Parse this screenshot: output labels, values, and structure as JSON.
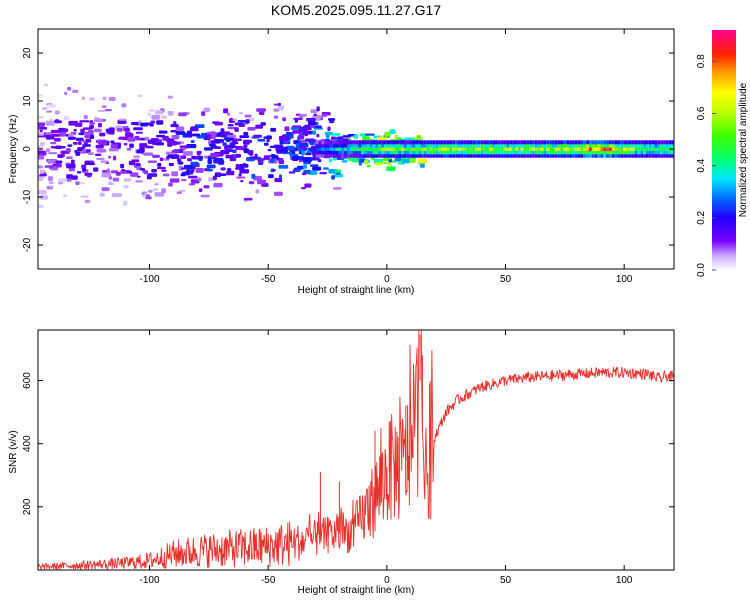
{
  "title": "KOM5.2025.095.11.27.G17",
  "chart_data": [
    {
      "type": "heatmap",
      "xlabel": "Height of straight line (km)",
      "ylabel": "Frequency (Hz)",
      "xlim": [
        -147,
        121
      ],
      "ylim": [
        -25,
        25
      ],
      "x_ticks": [
        -100,
        -50,
        0,
        50,
        100
      ],
      "y_ticks": [
        -20,
        -10,
        0,
        10,
        20
      ],
      "colorbar": {
        "label": "Normalized spectral amplitude",
        "range": [
          0,
          0.92
        ],
        "ticks": [
          0.0,
          0.2,
          0.4,
          0.6,
          0.8
        ]
      },
      "description_points": [
        {
          "x": -140,
          "f": 3,
          "a": 0.12
        },
        {
          "x": -130,
          "f": -2,
          "a": 0.15
        },
        {
          "x": -120,
          "f": 1,
          "a": 0.14
        },
        {
          "x": -110,
          "f": 4,
          "a": 0.13
        },
        {
          "x": -100,
          "f": 0,
          "a": 0.16
        },
        {
          "x": -90,
          "f": -3,
          "a": 0.15
        },
        {
          "x": -80,
          "f": 2,
          "a": 0.2
        },
        {
          "x": -70,
          "f": 0,
          "a": 0.18
        },
        {
          "x": -60,
          "f": -1,
          "a": 0.2
        },
        {
          "x": -50,
          "f": 1,
          "a": 0.2
        },
        {
          "x": -40,
          "f": -1,
          "a": 0.22
        },
        {
          "x": -30,
          "f": 0,
          "a": 0.25
        },
        {
          "x": -20,
          "f": 0,
          "a": 0.35
        },
        {
          "x": -10,
          "f": 0,
          "a": 0.45
        },
        {
          "x": 0,
          "f": 0,
          "a": 0.55
        },
        {
          "x": 10,
          "f": 0,
          "a": 0.5
        },
        {
          "x": 20,
          "f": 0,
          "a": 0.6
        },
        {
          "x": 30,
          "f": 0,
          "a": 0.62
        },
        {
          "x": 40,
          "f": 0,
          "a": 0.6
        },
        {
          "x": 50,
          "f": 0,
          "a": 0.55
        },
        {
          "x": 60,
          "f": 0,
          "a": 0.55
        },
        {
          "x": 70,
          "f": 0,
          "a": 0.6
        },
        {
          "x": 80,
          "f": 0,
          "a": 0.65
        },
        {
          "x": 90,
          "f": 0,
          "a": 0.85
        },
        {
          "x": 100,
          "f": 0,
          "a": 0.6
        },
        {
          "x": 110,
          "f": 0,
          "a": 0.5
        },
        {
          "x": 120,
          "f": 0,
          "a": 0.5
        }
      ]
    },
    {
      "type": "line",
      "xlabel": "Height of straight line (km)",
      "ylabel": "SNR (v/v)",
      "xlim": [
        -147,
        121
      ],
      "ylim": [
        0,
        760
      ],
      "x_ticks": [
        -100,
        -50,
        0,
        50,
        100
      ],
      "y_ticks": [
        200,
        400,
        600
      ],
      "color": "#e8302a",
      "series": [
        {
          "x": [
            -147,
            -140,
            -130,
            -120,
            -110,
            -100,
            -95,
            -90,
            -80,
            -70,
            -60,
            -50,
            -45,
            -40,
            -35,
            -30,
            -25,
            -20,
            -15,
            -10,
            -5,
            0,
            3,
            6,
            9,
            12,
            14,
            16,
            18,
            20,
            22,
            25,
            30,
            35,
            40,
            50,
            60,
            70,
            80,
            90,
            100,
            110,
            115,
            118,
            121
          ],
          "y": [
            10,
            12,
            15,
            18,
            22,
            30,
            40,
            50,
            60,
            65,
            70,
            75,
            80,
            85,
            90,
            100,
            110,
            115,
            120,
            170,
            230,
            300,
            330,
            320,
            360,
            420,
            600,
            280,
            330,
            420,
            450,
            500,
            540,
            560,
            580,
            600,
            610,
            615,
            620,
            625,
            625,
            620,
            605,
            615,
            610
          ]
        }
      ],
      "spikes": [
        {
          "x": 14,
          "y": 745
        },
        {
          "x": 15,
          "y": 680
        },
        {
          "x": 18,
          "y": 590
        },
        {
          "x": 8,
          "y": 520
        },
        {
          "x": 1,
          "y": 470
        },
        {
          "x": -5,
          "y": 440
        },
        {
          "x": -28,
          "y": 310
        },
        {
          "x": -20,
          "y": 280
        }
      ]
    }
  ]
}
